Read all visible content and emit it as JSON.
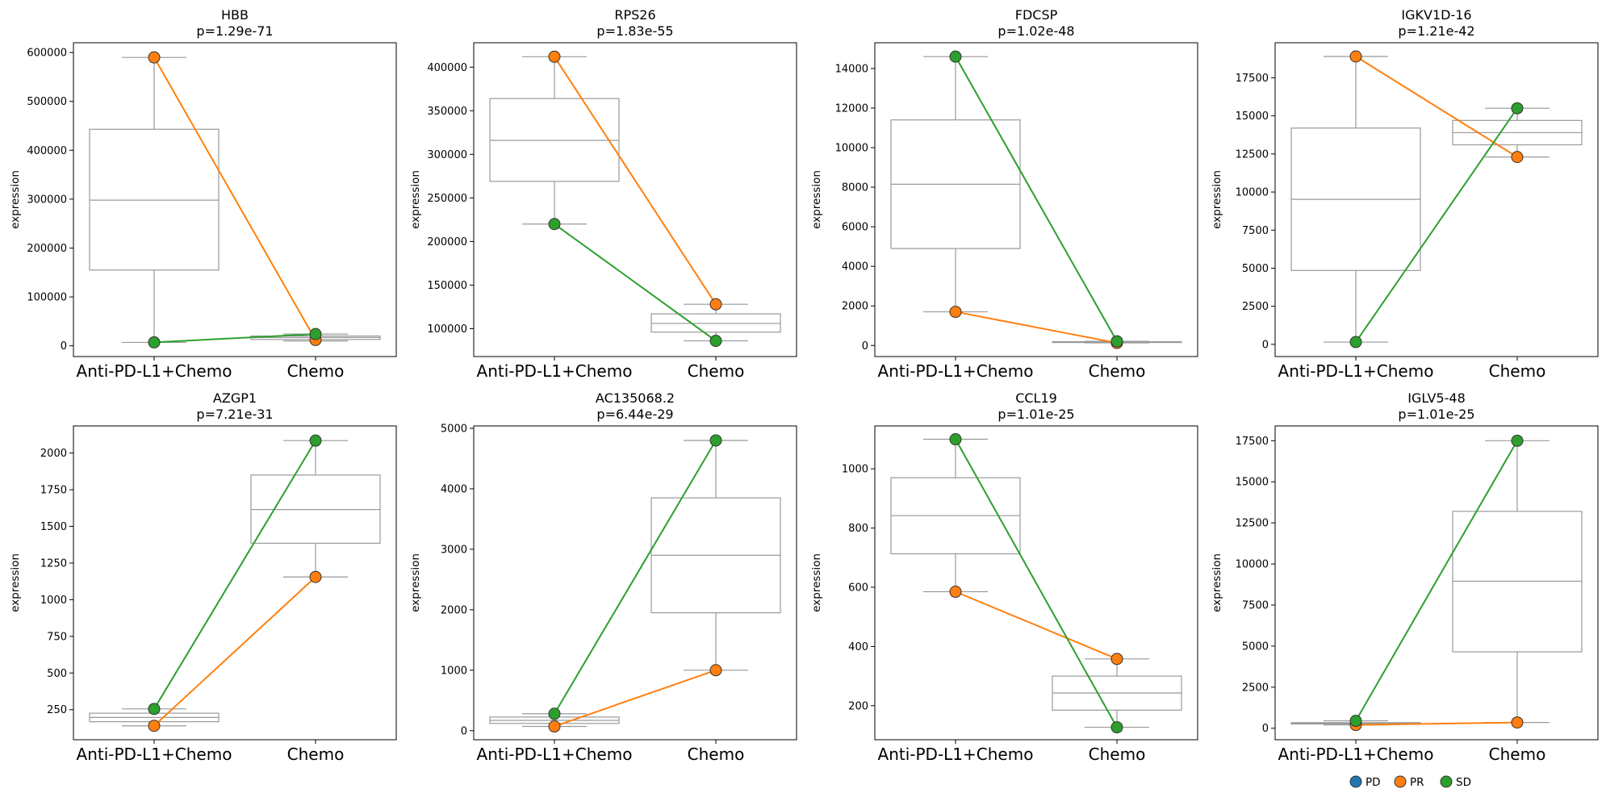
{
  "legend": [
    {
      "label": "PD",
      "color": "#1f77b4"
    },
    {
      "label": "PR",
      "color": "#ff7f0e"
    },
    {
      "label": "SD",
      "color": "#2ca02c"
    }
  ],
  "chart_data": [
    {
      "type": "box",
      "title": "HBB",
      "subtitle": "p=1.29e-71",
      "ylabel": "expression",
      "categories": [
        "Anti-PD-L1+Chemo",
        "Chemo"
      ],
      "ylim": [
        -22000,
        620000
      ],
      "yticks": [
        0,
        100000,
        200000,
        300000,
        400000,
        500000,
        600000
      ],
      "boxes": [
        {
          "min": 7000,
          "q1": 155000,
          "median": 298000,
          "q3": 443000,
          "max": 590000
        },
        {
          "min": 10000,
          "q1": 13000,
          "median": 17000,
          "q3": 20000,
          "max": 24000
        }
      ],
      "series": [
        {
          "name": "PR",
          "color": "#ff7f0e",
          "values": [
            590000,
            12000
          ]
        },
        {
          "name": "SD",
          "color": "#2ca02c",
          "values": [
            7000,
            24000
          ]
        }
      ]
    },
    {
      "type": "box",
      "title": "RPS26",
      "subtitle": "p=1.83e-55",
      "ylabel": "expression",
      "categories": [
        "Anti-PD-L1+Chemo",
        "Chemo"
      ],
      "ylim": [
        68000,
        428000
      ],
      "yticks": [
        100000,
        150000,
        200000,
        250000,
        300000,
        350000,
        400000
      ],
      "boxes": [
        {
          "min": 220000,
          "q1": 269000,
          "median": 316000,
          "q3": 364000,
          "max": 412000
        },
        {
          "min": 86000,
          "q1": 96000,
          "median": 106000,
          "q3": 117000,
          "max": 128000
        }
      ],
      "series": [
        {
          "name": "PR",
          "color": "#ff7f0e",
          "values": [
            412000,
            128000
          ]
        },
        {
          "name": "SD",
          "color": "#2ca02c",
          "values": [
            220000,
            86000
          ]
        }
      ]
    },
    {
      "type": "box",
      "title": "FDCSP",
      "subtitle": "p=1.02e-48",
      "ylabel": "expression",
      "categories": [
        "Anti-PD-L1+Chemo",
        "Chemo"
      ],
      "ylim": [
        -560,
        15300
      ],
      "yticks": [
        0,
        2000,
        4000,
        6000,
        8000,
        10000,
        12000,
        14000
      ],
      "boxes": [
        {
          "min": 1700,
          "q1": 4900,
          "median": 8150,
          "q3": 11400,
          "max": 14600
        },
        {
          "min": 130,
          "q1": 150,
          "median": 170,
          "q3": 190,
          "max": 210
        }
      ],
      "series": [
        {
          "name": "PR",
          "color": "#ff7f0e",
          "values": [
            1700,
            130
          ]
        },
        {
          "name": "SD",
          "color": "#2ca02c",
          "values": [
            14600,
            210
          ]
        }
      ]
    },
    {
      "type": "box",
      "title": "IGKV1D-16",
      "subtitle": "p=1.21e-42",
      "ylabel": "expression",
      "categories": [
        "Anti-PD-L1+Chemo",
        "Chemo"
      ],
      "ylim": [
        -800,
        19800
      ],
      "yticks": [
        0,
        2500,
        5000,
        7500,
        10000,
        12500,
        15000,
        17500
      ],
      "boxes": [
        {
          "min": 150,
          "q1": 4850,
          "median": 9520,
          "q3": 14200,
          "max": 18900
        },
        {
          "min": 12300,
          "q1": 13100,
          "median": 13900,
          "q3": 14700,
          "max": 15500
        }
      ],
      "series": [
        {
          "name": "PR",
          "color": "#ff7f0e",
          "values": [
            18900,
            12300
          ]
        },
        {
          "name": "SD",
          "color": "#2ca02c",
          "values": [
            150,
            15500
          ]
        }
      ]
    },
    {
      "type": "box",
      "title": "AZGP1",
      "subtitle": "p=7.21e-31",
      "ylabel": "expression",
      "categories": [
        "Anti-PD-L1+Chemo",
        "Chemo"
      ],
      "ylim": [
        45,
        2185
      ],
      "yticks": [
        250,
        500,
        750,
        1000,
        1250,
        1500,
        1750,
        2000
      ],
      "boxes": [
        {
          "min": 140,
          "q1": 168,
          "median": 197,
          "q3": 226,
          "max": 255
        },
        {
          "min": 1155,
          "q1": 1385,
          "median": 1615,
          "q3": 1850,
          "max": 2085
        }
      ],
      "series": [
        {
          "name": "PR",
          "color": "#ff7f0e",
          "values": [
            140,
            1155
          ]
        },
        {
          "name": "SD",
          "color": "#2ca02c",
          "values": [
            255,
            2085
          ]
        }
      ]
    },
    {
      "type": "box",
      "title": "AC135068.2",
      "subtitle": "p=6.44e-29",
      "ylabel": "expression",
      "categories": [
        "Anti-PD-L1+Chemo",
        "Chemo"
      ],
      "ylim": [
        -150,
        5040
      ],
      "yticks": [
        0,
        1000,
        2000,
        3000,
        4000,
        5000
      ],
      "boxes": [
        {
          "min": 70,
          "q1": 120,
          "median": 170,
          "q3": 225,
          "max": 280
        },
        {
          "min": 1000,
          "q1": 1950,
          "median": 2900,
          "q3": 3850,
          "max": 4800
        }
      ],
      "series": [
        {
          "name": "PR",
          "color": "#ff7f0e",
          "values": [
            70,
            1000
          ]
        },
        {
          "name": "SD",
          "color": "#2ca02c",
          "values": [
            280,
            4800
          ]
        }
      ]
    },
    {
      "type": "box",
      "title": "CCL19",
      "subtitle": "p=1.01e-25",
      "ylabel": "expression",
      "categories": [
        "Anti-PD-L1+Chemo",
        "Chemo"
      ],
      "ylim": [
        85,
        1145
      ],
      "yticks": [
        200,
        400,
        600,
        800,
        1000
      ],
      "boxes": [
        {
          "min": 585,
          "q1": 713,
          "median": 842,
          "q3": 970,
          "max": 1100
        },
        {
          "min": 127,
          "q1": 185,
          "median": 243,
          "q3": 300,
          "max": 358
        }
      ],
      "series": [
        {
          "name": "PR",
          "color": "#ff7f0e",
          "values": [
            585,
            358
          ]
        },
        {
          "name": "SD",
          "color": "#2ca02c",
          "values": [
            1100,
            127
          ]
        }
      ]
    },
    {
      "type": "box",
      "title": "IGLV5-48",
      "subtitle": "p=1.01e-25",
      "ylabel": "expression",
      "categories": [
        "Anti-PD-L1+Chemo",
        "Chemo"
      ],
      "ylim": [
        -700,
        18400
      ],
      "yticks": [
        0,
        2500,
        5000,
        7500,
        10000,
        12500,
        15000,
        17500
      ],
      "boxes": [
        {
          "min": 200,
          "q1": 260,
          "median": 300,
          "q3": 340,
          "max": 450
        },
        {
          "min": 350,
          "q1": 4650,
          "median": 8950,
          "q3": 13200,
          "max": 17500
        }
      ],
      "series": [
        {
          "name": "PR",
          "color": "#ff7f0e",
          "values": [
            200,
            350
          ]
        },
        {
          "name": "SD",
          "color": "#2ca02c",
          "values": [
            450,
            17500
          ]
        }
      ]
    }
  ]
}
